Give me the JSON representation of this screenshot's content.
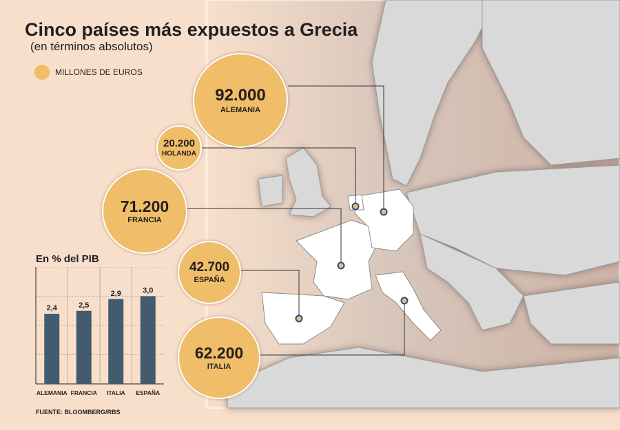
{
  "title": "Cinco países más expuestos a Grecia",
  "subtitle": "(en términos absolutos)",
  "legend": {
    "label": "MILLONES DE EUROS",
    "color": "#f0bd68"
  },
  "bubbles": [
    {
      "value": "92.000",
      "country": "ALEMANIA"
    },
    {
      "value": "20.200",
      "country": "HOLANDA"
    },
    {
      "value": "71.200",
      "country": "FRANCIA"
    },
    {
      "value": "42.700",
      "country": "ESPAÑA"
    },
    {
      "value": "62.200",
      "country": "ITALIA"
    }
  ],
  "pib": {
    "title": "En % del PIB"
  },
  "source": "FUENTE: BLOOMBERG/RBS",
  "colors": {
    "background": "#f7dfcb",
    "land": "#ffffff",
    "sea": "#d9d9d9",
    "bubble": "#f0bd68",
    "bar": "#435b6e"
  },
  "chart_data": [
    {
      "type": "bubble",
      "title": "Cinco países más expuestos a Grecia",
      "subtitle": "(en términos absolutos)",
      "unit": "MILLONES DE EUROS",
      "categories": [
        "ALEMANIA",
        "HOLANDA",
        "FRANCIA",
        "ESPAÑA",
        "ITALIA"
      ],
      "values": [
        92000,
        20200,
        71200,
        42700,
        62200
      ]
    },
    {
      "type": "bar",
      "title": "En % del PIB",
      "categories": [
        "ALEMANIA",
        "FRANCIA",
        "ITALIA",
        "ESPAÑA"
      ],
      "values": [
        2.4,
        2.5,
        2.9,
        3.0
      ],
      "labels": [
        "2,4",
        "2,5",
        "2,9",
        "3,0"
      ],
      "ylim": [
        0,
        4
      ],
      "grid": true
    }
  ]
}
